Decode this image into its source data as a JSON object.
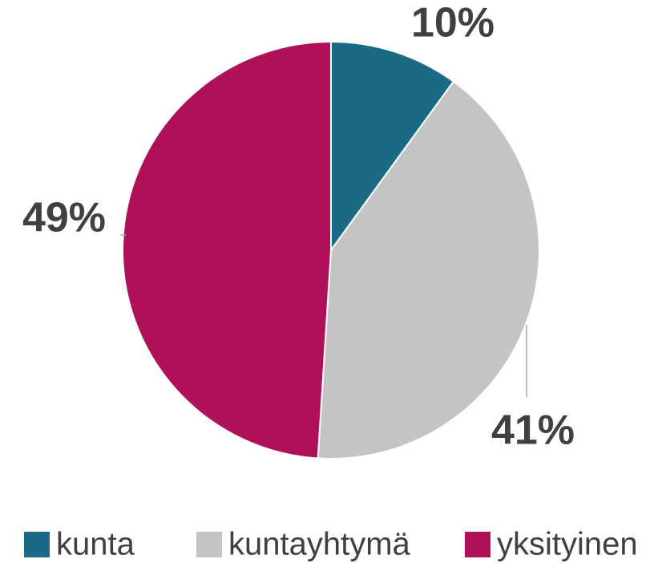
{
  "chart_data": {
    "type": "pie",
    "categories": [
      "kunta",
      "kuntayhtymä",
      "yksityinen"
    ],
    "values": [
      10,
      41,
      49
    ],
    "value_labels": [
      "10%",
      "41%",
      "49%"
    ],
    "colors": [
      "#1b6a85",
      "#c4c4c4",
      "#b0105a"
    ],
    "legend": "bottom"
  }
}
